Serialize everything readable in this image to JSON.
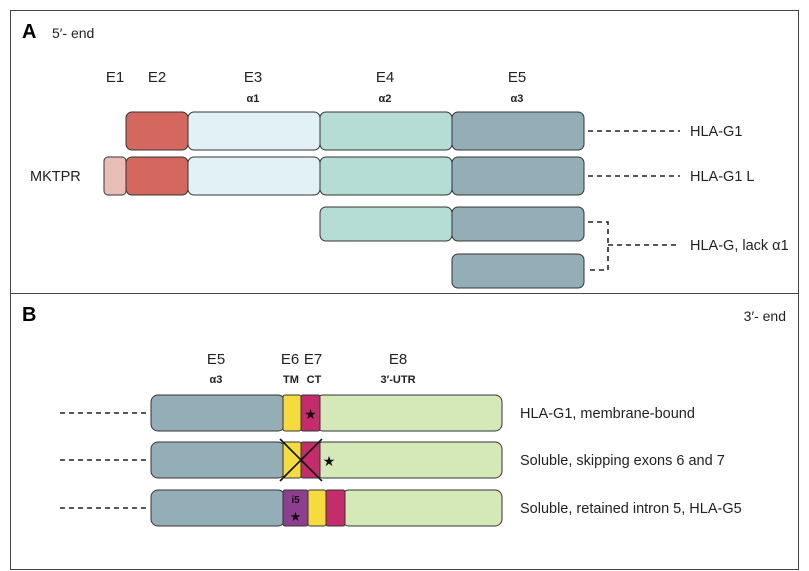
{
  "panel_a": {
    "letter": "A",
    "end_label": "5′- end",
    "exon_headers": {
      "e1": "E1",
      "e2": "E2",
      "e3": "E3",
      "e3_domain": "α1",
      "e4": "E4",
      "e4_domain": "α2",
      "e5": "E5",
      "e5_domain": "α3"
    },
    "leader_label": "MKTPR",
    "isoforms": [
      "HLA-G1",
      "HLA-G1 L",
      "HLA-G, lack α1"
    ]
  },
  "panel_b": {
    "letter": "B",
    "end_label": "3′- end",
    "exon_headers": {
      "e5": "E5",
      "e5_domain": "α3",
      "e6": "E6",
      "e6_domain": "TM",
      "e7": "E7",
      "e7_domain": "CT",
      "e8": "E8",
      "e8_domain": "3′-UTR"
    },
    "intron_label": "i5",
    "isoforms": [
      "HLA-G1, membrane-bound",
      "Soluble, skipping exons 6 and 7",
      "Soluble, retained intron 5, HLA-G5"
    ]
  },
  "colors": {
    "e1": "#e8bfb6",
    "e2": "#d5685e",
    "e3": "#e1f1f5",
    "e4": "#b5dcd5",
    "e5": "#94aeb8",
    "e6": "#f5dc3c",
    "e7": "#c42c6c",
    "e8": "#d5e8b8",
    "intron5": "#8e3e8e"
  }
}
